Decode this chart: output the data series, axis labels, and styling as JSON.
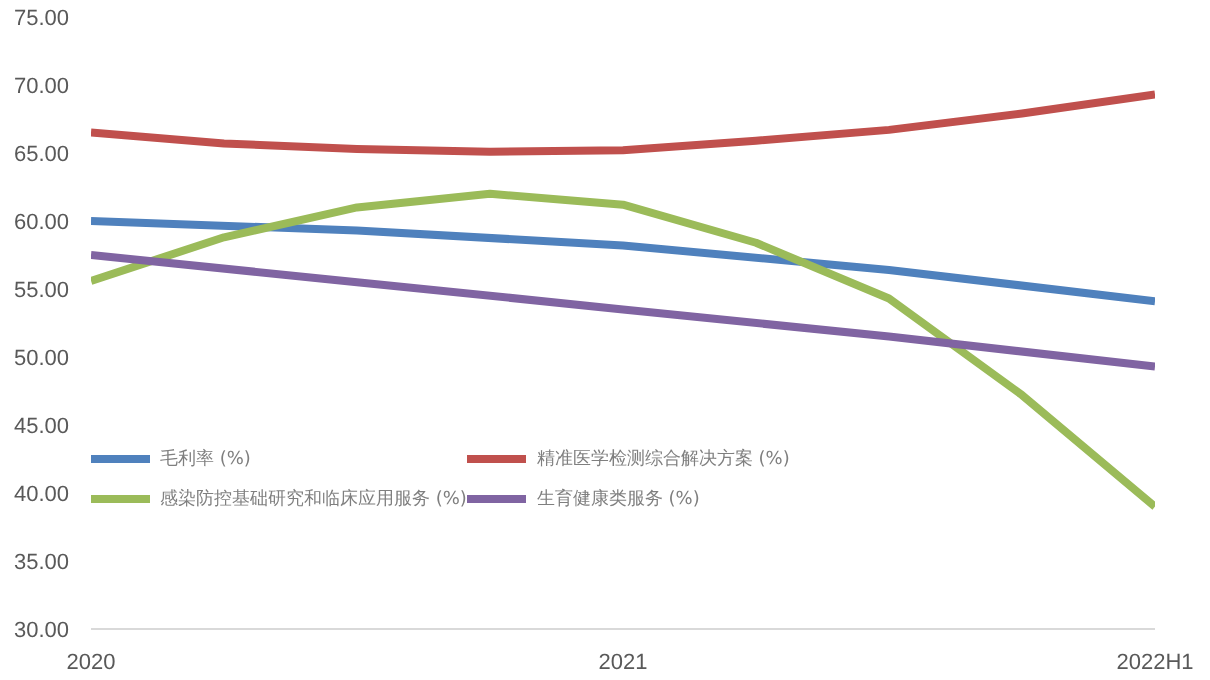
{
  "chart_data": {
    "type": "line",
    "series": [
      {
        "name": "毛利率 (%)",
        "color": "#4f81bd",
        "x": [
          2020,
          2020.5,
          2021,
          2021.5,
          2022
        ],
        "values": [
          60.0,
          59.3,
          58.2,
          56.4,
          54.1
        ]
      },
      {
        "name": "精准医学检测综合解决方案 (%)",
        "color": "#c0504d",
        "x": [
          2020,
          2020.25,
          2020.5,
          2020.75,
          2021,
          2021.25,
          2021.5,
          2021.75,
          2022
        ],
        "values": [
          66.5,
          65.7,
          65.3,
          65.1,
          65.2,
          65.9,
          66.7,
          67.9,
          69.3
        ]
      },
      {
        "name": "感染防控基础研究和临床应用服务 (%)",
        "color": "#9bbb59",
        "x": [
          2020,
          2020.25,
          2020.5,
          2020.75,
          2021,
          2021.25,
          2021.5,
          2021.75,
          2022
        ],
        "values": [
          55.6,
          58.8,
          61.0,
          62.0,
          61.2,
          58.4,
          54.3,
          47.2,
          39.0
        ]
      },
      {
        "name": "生育健康类服务 (%)",
        "color": "#8064a2",
        "x": [
          2020,
          2020.5,
          2021,
          2021.5,
          2022
        ],
        "values": [
          57.5,
          55.5,
          53.5,
          51.5,
          49.3
        ]
      }
    ],
    "xlim": [
      2020,
      2022
    ],
    "xticks": [
      2020,
      2021,
      {
        "value": 2022,
        "label": "2022H1"
      }
    ],
    "ylim": [
      30,
      75
    ],
    "yticks": [
      {
        "value": 30,
        "label": "30.00"
      },
      {
        "value": 35,
        "label": "35.00"
      },
      {
        "value": 40,
        "label": "40.00"
      },
      {
        "value": 45,
        "label": "45.00"
      },
      {
        "value": 50,
        "label": "50.00"
      },
      {
        "value": 55,
        "label": "55.00"
      },
      {
        "value": 60,
        "label": "60.00"
      },
      {
        "value": 65,
        "label": "65.00"
      },
      {
        "value": 70,
        "label": "70.00"
      },
      {
        "value": 75,
        "label": "75.00"
      }
    ],
    "grid": false,
    "legend": "left",
    "marker": "none",
    "line_style": "solid"
  }
}
